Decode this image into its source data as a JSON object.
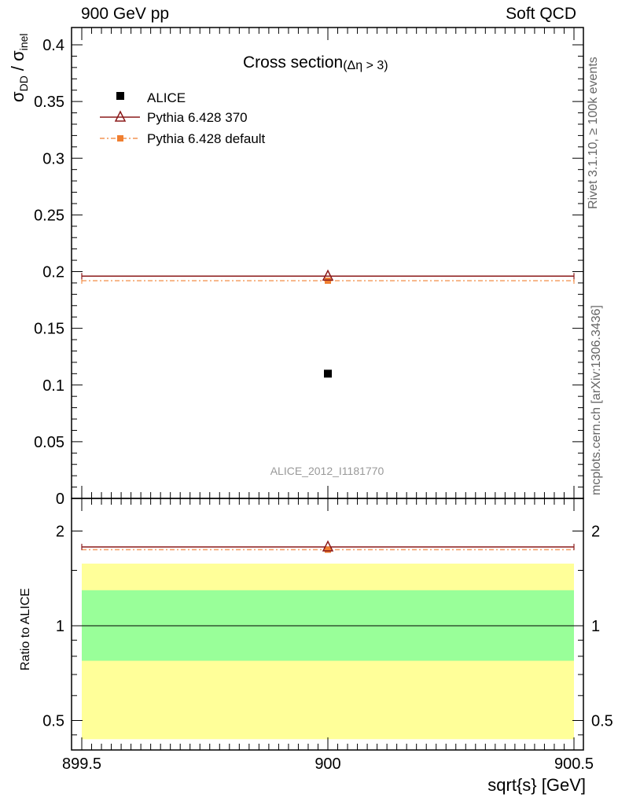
{
  "header": {
    "left": "900 GeV pp",
    "right": "Soft QCD"
  },
  "side_labels": {
    "rivet": "Rivet 3.1.10, ≥ 100k events",
    "mcplots": "mcplots.cern.ch [arXiv:1306.3436]"
  },
  "main_plot": {
    "title": "Cross section",
    "title_cut": "(Δη > 3)",
    "ylabel_sigma": "σ",
    "ylabel_sub_dd": "DD",
    "ylabel_slash": " / σ",
    "ylabel_sub_inel": "inel",
    "analysis_id": "ALICE_2012_I1181770",
    "legend": [
      {
        "label": "ALICE",
        "key": "data"
      },
      {
        "label": "Pythia 6.428 370",
        "key": "p370"
      },
      {
        "label": "Pythia 6.428 default",
        "key": "pdef"
      }
    ],
    "y_ticks": [
      "0.4",
      "0.35",
      "0.3",
      "0.25",
      "0.2",
      "0.15",
      "0.1",
      "0.05",
      "0"
    ]
  },
  "ratio_plot": {
    "ylabel": "Ratio to ALICE",
    "y_ticks": [
      "2",
      "1",
      "0.5"
    ]
  },
  "x_axis": {
    "label": "sqrt{s} [GeV]",
    "ticks": [
      "899.5",
      "900",
      "900.5"
    ]
  },
  "colors": {
    "data": "#000000",
    "pythia_370": "#8b1a1a",
    "pythia_default": "#f07f30",
    "band_inner": "#99ff99",
    "band_outer": "#ffff99"
  },
  "chart_data": [
    {
      "type": "scatter",
      "title": "Cross section (Δη > 3)",
      "xlabel": "sqrt{s} [GeV]",
      "ylabel": "σ_DD / σ_inel",
      "xlim": [
        899.5,
        900.5
      ],
      "ylim": [
        0,
        0.415
      ],
      "series": [
        {
          "name": "ALICE",
          "x": [
            900
          ],
          "y": [
            0.11
          ],
          "style": "points"
        },
        {
          "name": "Pythia 6.428 370",
          "x": [
            899.5,
            900.5
          ],
          "y": [
            0.196,
            0.196
          ],
          "marker_x": 900,
          "marker_y": 0.196,
          "style": "step"
        },
        {
          "name": "Pythia 6.428 default",
          "x": [
            899.5,
            900.5
          ],
          "y": [
            0.192,
            0.192
          ],
          "marker_x": 900,
          "marker_y": 0.192,
          "style": "step"
        }
      ]
    },
    {
      "type": "line",
      "ylabel": "Ratio to ALICE",
      "xlabel": "sqrt{s} [GeV]",
      "xlim": [
        899.5,
        900.5
      ],
      "ylim": [
        0.42,
        2.45
      ],
      "log_y": true,
      "bands": {
        "inner": [
          0.774,
          1.297
        ],
        "outer": [
          0.436,
          1.576
        ]
      },
      "reference": 1,
      "series": [
        {
          "name": "Pythia 6.428 370",
          "x": [
            899.5,
            900.5
          ],
          "y": [
            1.78,
            1.78
          ]
        },
        {
          "name": "Pythia 6.428 default",
          "x": [
            899.5,
            900.5
          ],
          "y": [
            1.745,
            1.745
          ]
        }
      ]
    }
  ]
}
